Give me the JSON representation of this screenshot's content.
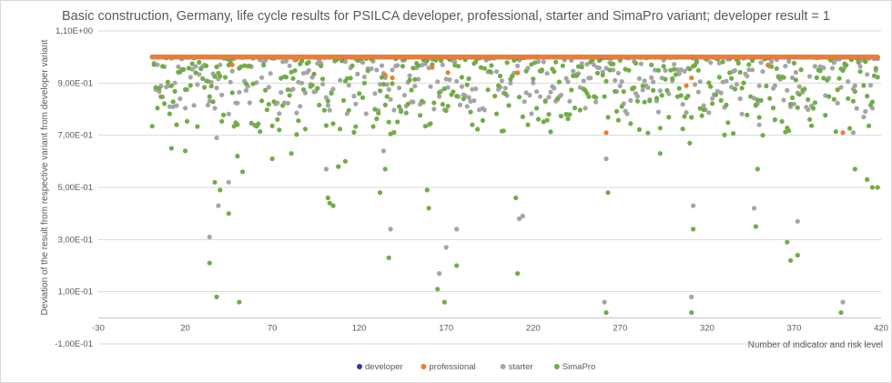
{
  "chart_data": {
    "type": "scatter",
    "title": "Basic construction, Germany, life cycle results for PSILCA developer, professional, starter and SimaPro variant; developer result = 1",
    "xlabel": "Number of indicator and risk level",
    "ylabel": "Deviation of the result from respective variant from developer variant",
    "xlim": [
      -30,
      420
    ],
    "ylim": [
      -0.1,
      1.1
    ],
    "x_ticks": [
      -30,
      20,
      70,
      120,
      170,
      220,
      270,
      320,
      370,
      420
    ],
    "x_tick_labels": [
      "-30",
      "20",
      "70",
      "120",
      "170",
      "220",
      "270",
      "320",
      "370",
      "420"
    ],
    "y_ticks": [
      -0.1,
      0.1,
      0.3,
      0.5,
      0.7,
      0.9,
      1.1
    ],
    "y_tick_labels": [
      "-1,00E-01",
      "1,00E-01",
      "3,00E-01",
      "5,00E-01",
      "7,00E-01",
      "9,00E-01",
      "1,10E+00"
    ],
    "grid": true,
    "legend_position": "bottom",
    "series": [
      {
        "name": "developer",
        "color": "#2e3a8c",
        "note": "one point per indicator, all at 1",
        "x_range": [
          1,
          418
        ],
        "y": 1.0
      },
      {
        "name": "professional",
        "color": "#ed7d31",
        "x_range": [
          1,
          418
        ],
        "baseline_y": 1.0,
        "outliers": [
          [
            47,
            0.97
          ],
          [
            84,
            0.99
          ],
          [
            135,
            0.93
          ],
          [
            139,
            0.92
          ],
          [
            162,
            0.96
          ],
          [
            171,
            0.94
          ],
          [
            211,
            0.94
          ],
          [
            262,
            0.71
          ],
          [
            308,
            0.89
          ],
          [
            311,
            0.92
          ],
          [
            355,
            0.97
          ],
          [
            398,
            0.71
          ]
        ]
      },
      {
        "name": "starter",
        "color": "#a5a5a5",
        "points": [
          [
            34,
            0.31
          ],
          [
            38,
            0.69
          ],
          [
            39,
            0.43
          ],
          [
            45,
            0.52
          ],
          [
            101,
            0.57
          ],
          [
            118,
            0.82
          ],
          [
            134,
            0.64
          ],
          [
            138,
            0.34
          ],
          [
            160,
            0.74
          ],
          [
            166,
            0.17
          ],
          [
            170,
            0.27
          ],
          [
            176,
            0.34
          ],
          [
            212,
            0.38
          ],
          [
            214,
            0.39
          ],
          [
            261,
            0.06
          ],
          [
            262,
            0.61
          ],
          [
            311,
            0.08
          ],
          [
            312,
            0.43
          ],
          [
            347,
            0.42
          ],
          [
            350,
            0.74
          ],
          [
            372,
            0.37
          ],
          [
            398,
            0.06
          ],
          [
            404,
            0.71
          ],
          [
            410,
            0.77
          ]
        ]
      },
      {
        "name": "SimaPro",
        "color": "#70ad47",
        "points": [
          [
            12,
            0.65
          ],
          [
            20,
            0.64
          ],
          [
            34,
            0.21
          ],
          [
            37,
            0.52
          ],
          [
            38,
            0.08
          ],
          [
            40,
            0.49
          ],
          [
            45,
            0.4
          ],
          [
            50,
            0.62
          ],
          [
            51,
            0.06
          ],
          [
            53,
            0.56
          ],
          [
            70,
            0.61
          ],
          [
            81,
            0.63
          ],
          [
            102,
            0.46
          ],
          [
            103,
            0.44
          ],
          [
            105,
            0.43
          ],
          [
            108,
            0.58
          ],
          [
            112,
            0.6
          ],
          [
            132,
            0.48
          ],
          [
            135,
            0.57
          ],
          [
            137,
            0.23
          ],
          [
            159,
            0.49
          ],
          [
            160,
            0.42
          ],
          [
            165,
            0.11
          ],
          [
            169,
            0.06
          ],
          [
            176,
            0.2
          ],
          [
            210,
            0.46
          ],
          [
            211,
            0.17
          ],
          [
            262,
            0.02
          ],
          [
            263,
            0.48
          ],
          [
            293,
            0.63
          ],
          [
            310,
            0.67
          ],
          [
            311,
            0.02
          ],
          [
            312,
            0.34
          ],
          [
            348,
            0.35
          ],
          [
            349,
            0.57
          ],
          [
            352,
            0.7
          ],
          [
            366,
            0.29
          ],
          [
            368,
            0.22
          ],
          [
            372,
            0.24
          ],
          [
            397,
            0.02
          ],
          [
            405,
            0.57
          ],
          [
            412,
            0.53
          ],
          [
            415,
            0.5
          ],
          [
            418,
            0.5
          ]
        ]
      }
    ]
  }
}
